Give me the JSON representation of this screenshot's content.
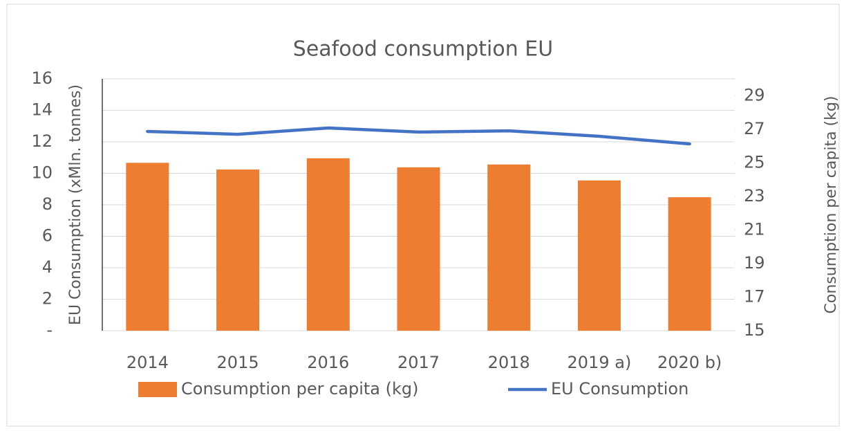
{
  "chart_data": {
    "type": "bar_line",
    "title": "Seafood consumption EU",
    "categories": [
      "2014",
      "2015",
      "2016",
      "2017",
      "2018",
      "2019 a)",
      "2020 b)"
    ],
    "series": [
      {
        "name": "Consumption per capita (kg)",
        "type": "bar",
        "axis": "y2",
        "color": "#ed7d31",
        "values": [
          25.0,
          24.6,
          25.27,
          24.73,
          24.9,
          23.95,
          22.95
        ]
      },
      {
        "name": "EU Consumption",
        "type": "line",
        "axis": "y",
        "color": "#4472c4",
        "values": [
          12.66,
          12.48,
          12.88,
          12.62,
          12.7,
          12.35,
          11.87
        ]
      }
    ],
    "ylabel": "EU Consumption (xMln. tonnes)",
    "y2label": "Consumption per capita (kg)",
    "ylim": [
      0,
      16
    ],
    "yticks": [
      {
        "value": 0,
        "label": "-"
      },
      2,
      4,
      6,
      8,
      10,
      12,
      14,
      16
    ],
    "y2lim": [
      15,
      30
    ],
    "y2ticks": [
      15,
      17,
      19,
      21,
      23,
      25,
      27,
      29
    ],
    "grid": true,
    "legend": "bottom"
  }
}
